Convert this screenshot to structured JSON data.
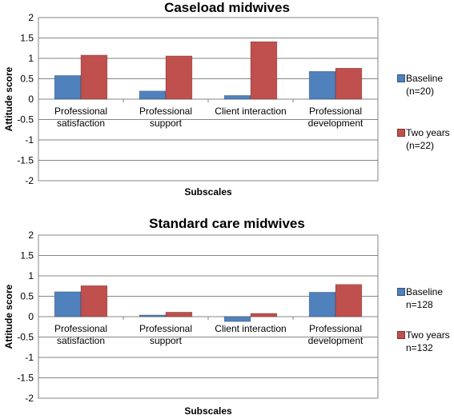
{
  "chart_data": [
    {
      "type": "bar",
      "title": "Caseload midwives",
      "xlabel": "Subscales",
      "ylabel": "Attitude score",
      "ylim": [
        -2,
        2
      ],
      "yticks": [
        "2",
        "1.5",
        "1",
        "0.5",
        "0",
        "-0.5",
        "-1",
        "-1.5",
        "-2"
      ],
      "categories": [
        [
          "Professional",
          "satisfaction"
        ],
        [
          "Professional",
          "support"
        ],
        [
          "Client interaction"
        ],
        [
          "Professional",
          "development"
        ]
      ],
      "series": [
        {
          "name": "Baseline\n(n=20)",
          "color": "#4F81BD",
          "values": [
            0.58,
            0.2,
            0.09,
            0.68
          ]
        },
        {
          "name": "Two years\n(n=22)",
          "color": "#C0504D",
          "values": [
            1.08,
            1.06,
            1.41,
            0.76
          ]
        }
      ],
      "grid": true,
      "legend_position": "right"
    },
    {
      "type": "bar",
      "title": "Standard care midwives",
      "xlabel": "Subscales",
      "ylabel": "Attitude score",
      "ylim": [
        -2,
        2
      ],
      "yticks": [
        "2",
        "1.5",
        "1",
        "0.5",
        "0",
        "-0.5",
        "-1",
        "-1.5",
        "-2"
      ],
      "categories": [
        [
          "Professional",
          "satisfaction"
        ],
        [
          "Professional",
          "support"
        ],
        [
          "Client interaction"
        ],
        [
          "Professional",
          "development"
        ]
      ],
      "series": [
        {
          "name": "Baseline\nn=128",
          "color": "#4F81BD",
          "values": [
            0.61,
            0.04,
            -0.12,
            0.6
          ]
        },
        {
          "name": "Two years\nn=132",
          "color": "#C0504D",
          "values": [
            0.76,
            0.11,
            0.08,
            0.79
          ]
        }
      ],
      "grid": true,
      "legend_position": "right"
    }
  ]
}
